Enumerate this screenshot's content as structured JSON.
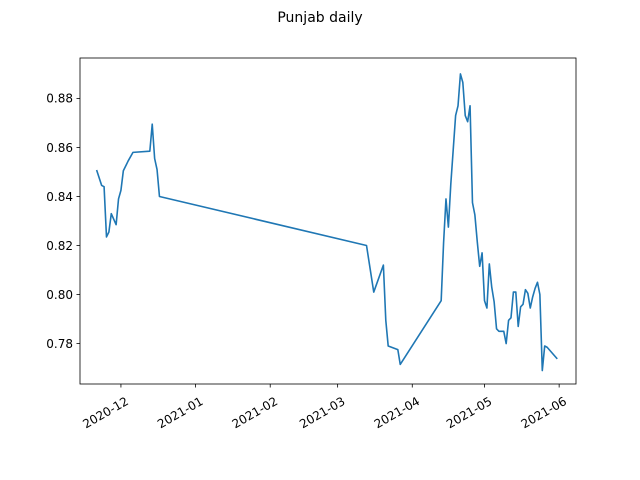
{
  "chart_data": {
    "type": "line",
    "title": "Punjab daily",
    "xlabel": "",
    "ylabel": "",
    "x_axis_type": "date",
    "xlim": [
      "2020-11-14",
      "2021-06-08"
    ],
    "ylim": [
      0.7635,
      0.8965
    ],
    "x_ticks": [
      {
        "date": "2020-12-01",
        "label": "2020-12"
      },
      {
        "date": "2021-01-01",
        "label": "2021-01"
      },
      {
        "date": "2021-02-01",
        "label": "2021-02"
      },
      {
        "date": "2021-03-01",
        "label": "2021-03"
      },
      {
        "date": "2021-04-01",
        "label": "2021-04"
      },
      {
        "date": "2021-05-01",
        "label": "2021-05"
      },
      {
        "date": "2021-06-01",
        "label": "2021-06"
      }
    ],
    "y_ticks": [
      0.78,
      0.8,
      0.82,
      0.84,
      0.86,
      0.88
    ],
    "y_tick_labels": [
      "0.78",
      "0.80",
      "0.82",
      "0.84",
      "0.86",
      "0.88"
    ],
    "grid": false,
    "series": [
      {
        "color": "#1f77b4",
        "points": [
          [
            "2020-11-21",
            0.8505
          ],
          [
            "2020-11-23",
            0.8445
          ],
          [
            "2020-11-24",
            0.844
          ],
          [
            "2020-11-25",
            0.8235
          ],
          [
            "2020-11-26",
            0.8255
          ],
          [
            "2020-11-27",
            0.833
          ],
          [
            "2020-11-29",
            0.8285
          ],
          [
            "2020-11-30",
            0.839
          ],
          [
            "2020-12-01",
            0.8425
          ],
          [
            "2020-12-02",
            0.8505
          ],
          [
            "2020-12-04",
            0.8545
          ],
          [
            "2020-12-06",
            0.858
          ],
          [
            "2020-12-13",
            0.8585
          ],
          [
            "2020-12-14",
            0.8695
          ],
          [
            "2020-12-15",
            0.8555
          ],
          [
            "2020-12-16",
            0.851
          ],
          [
            "2020-12-17",
            0.84
          ],
          [
            "2021-03-13",
            0.82
          ],
          [
            "2021-03-16",
            0.801
          ],
          [
            "2021-03-20",
            0.812
          ],
          [
            "2021-03-21",
            0.7895
          ],
          [
            "2021-03-22",
            0.779
          ],
          [
            "2021-03-26",
            0.7775
          ],
          [
            "2021-03-27",
            0.7715
          ],
          [
            "2021-04-13",
            0.7975
          ],
          [
            "2021-04-14",
            0.821
          ],
          [
            "2021-04-15",
            0.839
          ],
          [
            "2021-04-16",
            0.8275
          ],
          [
            "2021-04-17",
            0.845
          ],
          [
            "2021-04-18",
            0.859
          ],
          [
            "2021-04-19",
            0.873
          ],
          [
            "2021-04-20",
            0.877
          ],
          [
            "2021-04-21",
            0.89
          ],
          [
            "2021-04-22",
            0.8865
          ],
          [
            "2021-04-23",
            0.873
          ],
          [
            "2021-04-24",
            0.8705
          ],
          [
            "2021-04-25",
            0.877
          ],
          [
            "2021-04-26",
            0.8375
          ],
          [
            "2021-04-27",
            0.8325
          ],
          [
            "2021-04-28",
            0.8215
          ],
          [
            "2021-04-29",
            0.8115
          ],
          [
            "2021-04-30",
            0.817
          ],
          [
            "2021-05-01",
            0.7975
          ],
          [
            "2021-05-02",
            0.7945
          ],
          [
            "2021-05-03",
            0.8125
          ],
          [
            "2021-05-04",
            0.803
          ],
          [
            "2021-05-05",
            0.797
          ],
          [
            "2021-05-06",
            0.786
          ],
          [
            "2021-05-07",
            0.785
          ],
          [
            "2021-05-09",
            0.785
          ],
          [
            "2021-05-10",
            0.78
          ],
          [
            "2021-05-11",
            0.7895
          ],
          [
            "2021-05-12",
            0.7905
          ],
          [
            "2021-05-13",
            0.801
          ],
          [
            "2021-05-14",
            0.801
          ],
          [
            "2021-05-15",
            0.787
          ],
          [
            "2021-05-16",
            0.795
          ],
          [
            "2021-05-17",
            0.796
          ],
          [
            "2021-05-18",
            0.802
          ],
          [
            "2021-05-19",
            0.8005
          ],
          [
            "2021-05-20",
            0.7945
          ],
          [
            "2021-05-21",
            0.799
          ],
          [
            "2021-05-22",
            0.8025
          ],
          [
            "2021-05-23",
            0.805
          ],
          [
            "2021-05-24",
            0.8
          ],
          [
            "2021-05-25",
            0.769
          ],
          [
            "2021-05-26",
            0.779
          ],
          [
            "2021-05-27",
            0.7785
          ],
          [
            "2021-05-31",
            0.774
          ]
        ]
      }
    ]
  }
}
